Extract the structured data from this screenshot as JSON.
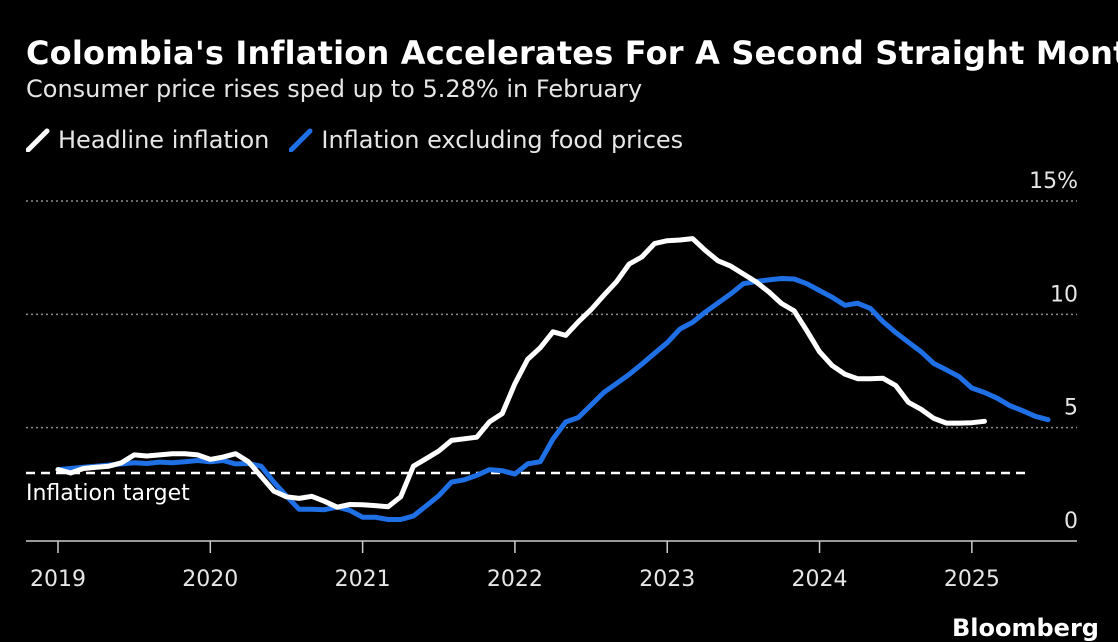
{
  "title": "Colombia's Inflation Accelerates For A Second Straight Month",
  "subtitle": "Consumer price rises sped up to 5.28% in February",
  "brand": "Bloomberg",
  "colors": {
    "background": "#000000",
    "headline": "#ffffff",
    "ex_food": "#1f6fe5",
    "grid": "#8c8c8c"
  },
  "chart_data": {
    "type": "line",
    "title": "Colombia's Inflation Accelerates For A Second Straight Month",
    "subtitle": "Consumer price rises sped up to 5.28% in February",
    "xlabel": "",
    "ylabel": "",
    "x_ticks": [
      "2019",
      "2020",
      "2021",
      "2022",
      "2023",
      "2024",
      "2025"
    ],
    "x_range": [
      "2019-01",
      "2025-06"
    ],
    "y_ticks": [
      "0",
      "5",
      "10",
      "15%"
    ],
    "ylim": [
      0,
      15
    ],
    "grid": true,
    "legend_position": "top-left",
    "target": {
      "label": "Inflation target",
      "value": 3.0
    },
    "series": [
      {
        "name": "Headline inflation",
        "color": "#ffffff",
        "points": [
          [
            "2019-01",
            3.15
          ],
          [
            "2019-02",
            3.0
          ],
          [
            "2019-03",
            3.2
          ],
          [
            "2019-04",
            3.25
          ],
          [
            "2019-05",
            3.3
          ],
          [
            "2019-06",
            3.45
          ],
          [
            "2019-07",
            3.8
          ],
          [
            "2019-08",
            3.75
          ],
          [
            "2019-09",
            3.8
          ],
          [
            "2019-10",
            3.85
          ],
          [
            "2019-11",
            3.85
          ],
          [
            "2019-12",
            3.8
          ],
          [
            "2020-01",
            3.6
          ],
          [
            "2020-02",
            3.7
          ],
          [
            "2020-03",
            3.85
          ],
          [
            "2020-04",
            3.5
          ],
          [
            "2020-05",
            2.85
          ],
          [
            "2020-06",
            2.2
          ],
          [
            "2020-07",
            1.95
          ],
          [
            "2020-08",
            1.88
          ],
          [
            "2020-09",
            1.97
          ],
          [
            "2020-10",
            1.75
          ],
          [
            "2020-11",
            1.49
          ],
          [
            "2020-12",
            1.61
          ],
          [
            "2021-01",
            1.6
          ],
          [
            "2021-02",
            1.56
          ],
          [
            "2021-03",
            1.51
          ],
          [
            "2021-04",
            1.95
          ],
          [
            "2021-05",
            3.3
          ],
          [
            "2021-06",
            3.63
          ],
          [
            "2021-07",
            3.97
          ],
          [
            "2021-08",
            4.44
          ],
          [
            "2021-09",
            4.51
          ],
          [
            "2021-10",
            4.58
          ],
          [
            "2021-11",
            5.26
          ],
          [
            "2021-12",
            5.62
          ],
          [
            "2022-01",
            6.94
          ],
          [
            "2022-02",
            8.01
          ],
          [
            "2022-03",
            8.53
          ],
          [
            "2022-04",
            9.23
          ],
          [
            "2022-05",
            9.07
          ],
          [
            "2022-06",
            9.67
          ],
          [
            "2022-07",
            10.21
          ],
          [
            "2022-08",
            10.84
          ],
          [
            "2022-09",
            11.44
          ],
          [
            "2022-10",
            12.22
          ],
          [
            "2022-11",
            12.53
          ],
          [
            "2022-12",
            13.12
          ],
          [
            "2023-01",
            13.25
          ],
          [
            "2023-02",
            13.28
          ],
          [
            "2023-03",
            13.34
          ],
          [
            "2023-04",
            12.82
          ],
          [
            "2023-05",
            12.36
          ],
          [
            "2023-06",
            12.13
          ],
          [
            "2023-07",
            11.78
          ],
          [
            "2023-08",
            11.43
          ],
          [
            "2023-09",
            10.99
          ],
          [
            "2023-10",
            10.48
          ],
          [
            "2023-11",
            10.15
          ],
          [
            "2023-12",
            9.28
          ],
          [
            "2024-01",
            8.35
          ],
          [
            "2024-02",
            7.74
          ],
          [
            "2024-03",
            7.36
          ],
          [
            "2024-04",
            7.16
          ],
          [
            "2024-05",
            7.16
          ],
          [
            "2024-06",
            7.18
          ],
          [
            "2024-07",
            6.86
          ],
          [
            "2024-08",
            6.12
          ],
          [
            "2024-09",
            5.81
          ],
          [
            "2024-10",
            5.41
          ],
          [
            "2024-11",
            5.2
          ],
          [
            "2024-12",
            5.2
          ],
          [
            "2025-01",
            5.22
          ],
          [
            "2025-02",
            5.28
          ]
        ]
      },
      {
        "name": "Inflation excluding food prices",
        "color": "#1f6fe5",
        "points": [
          [
            "2019-01",
            3.15
          ],
          [
            "2019-02",
            3.2
          ],
          [
            "2019-03",
            3.25
          ],
          [
            "2019-04",
            3.3
          ],
          [
            "2019-05",
            3.35
          ],
          [
            "2019-06",
            3.4
          ],
          [
            "2019-07",
            3.45
          ],
          [
            "2019-08",
            3.42
          ],
          [
            "2019-09",
            3.48
          ],
          [
            "2019-10",
            3.45
          ],
          [
            "2019-11",
            3.5
          ],
          [
            "2019-12",
            3.55
          ],
          [
            "2020-01",
            3.5
          ],
          [
            "2020-02",
            3.55
          ],
          [
            "2020-03",
            3.4
          ],
          [
            "2020-04",
            3.42
          ],
          [
            "2020-05",
            3.3
          ],
          [
            "2020-06",
            2.6
          ],
          [
            "2020-07",
            1.98
          ],
          [
            "2020-08",
            1.4
          ],
          [
            "2020-09",
            1.4
          ],
          [
            "2020-10",
            1.38
          ],
          [
            "2020-11",
            1.5
          ],
          [
            "2020-12",
            1.35
          ],
          [
            "2021-01",
            1.05
          ],
          [
            "2021-02",
            1.05
          ],
          [
            "2021-03",
            0.95
          ],
          [
            "2021-04",
            0.95
          ],
          [
            "2021-05",
            1.1
          ],
          [
            "2021-06",
            1.55
          ],
          [
            "2021-07",
            2.0
          ],
          [
            "2021-08",
            2.6
          ],
          [
            "2021-09",
            2.7
          ],
          [
            "2021-10",
            2.9
          ],
          [
            "2021-11",
            3.15
          ],
          [
            "2021-12",
            3.1
          ],
          [
            "2022-01",
            2.95
          ],
          [
            "2022-02",
            3.4
          ],
          [
            "2022-03",
            3.5
          ],
          [
            "2022-04",
            4.5
          ],
          [
            "2022-05",
            5.25
          ],
          [
            "2022-06",
            5.45
          ],
          [
            "2022-07",
            6.0
          ],
          [
            "2022-08",
            6.55
          ],
          [
            "2022-09",
            6.95
          ],
          [
            "2022-10",
            7.35
          ],
          [
            "2022-11",
            7.8
          ],
          [
            "2022-12",
            8.28
          ],
          [
            "2023-01",
            8.75
          ],
          [
            "2023-02",
            9.35
          ],
          [
            "2023-03",
            9.65
          ],
          [
            "2023-04",
            10.1
          ],
          [
            "2023-05",
            10.5
          ],
          [
            "2023-06",
            10.9
          ],
          [
            "2023-07",
            11.35
          ],
          [
            "2023-08",
            11.45
          ],
          [
            "2023-09",
            11.52
          ],
          [
            "2023-10",
            11.58
          ],
          [
            "2023-11",
            11.56
          ],
          [
            "2023-12",
            11.35
          ],
          [
            "2024-01",
            11.05
          ],
          [
            "2024-02",
            10.75
          ],
          [
            "2024-03",
            10.4
          ],
          [
            "2024-04",
            10.49
          ],
          [
            "2024-05",
            10.26
          ],
          [
            "2024-06",
            9.68
          ],
          [
            "2024-07",
            9.2
          ],
          [
            "2024-08",
            8.77
          ],
          [
            "2024-09",
            8.35
          ],
          [
            "2024-10",
            7.83
          ],
          [
            "2024-11",
            7.55
          ],
          [
            "2024-12",
            7.25
          ],
          [
            "2025-01",
            6.75
          ],
          [
            "2025-02",
            6.55
          ],
          [
            "2025-03",
            6.3
          ],
          [
            "2025-04",
            5.97
          ],
          [
            "2025-05",
            5.75
          ],
          [
            "2025-06",
            5.5
          ],
          [
            "2025-07",
            5.35
          ]
        ]
      }
    ]
  }
}
